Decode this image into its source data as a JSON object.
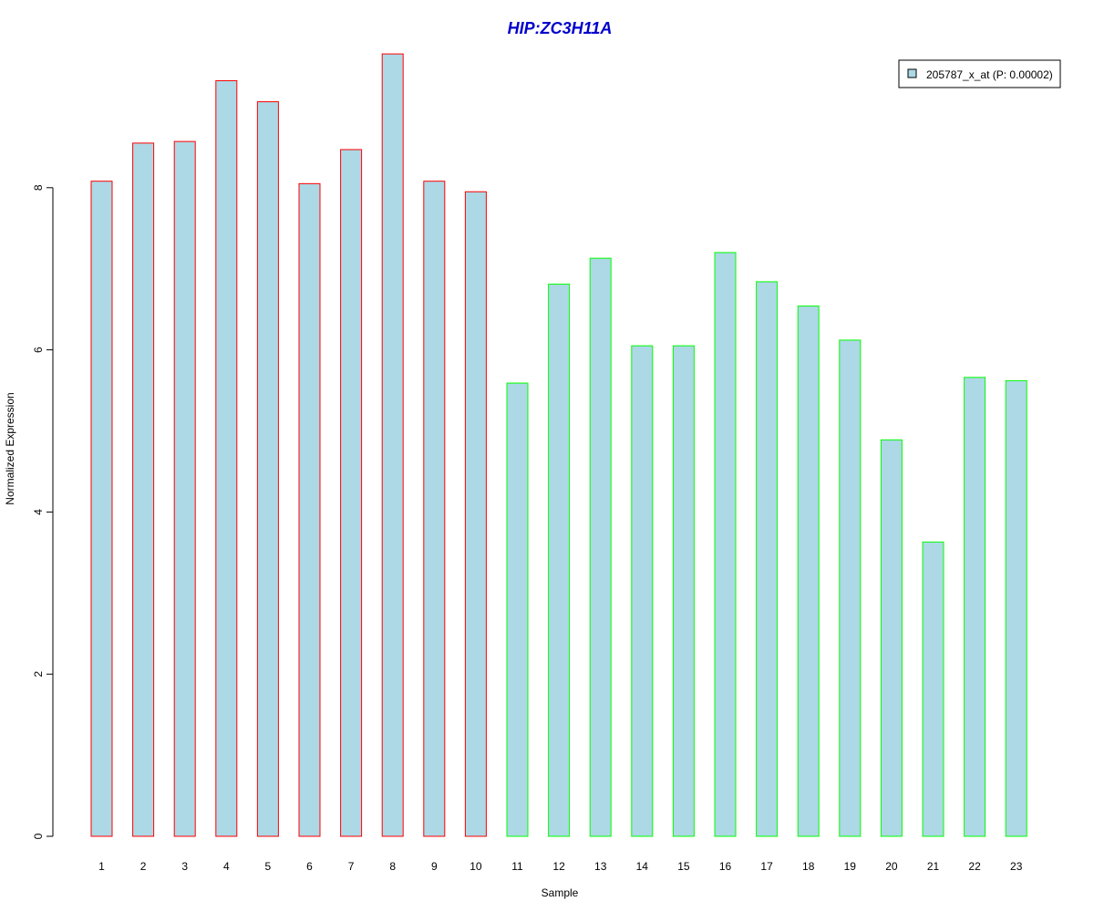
{
  "chart_data": {
    "type": "bar",
    "title": "HIP:ZC3H11A",
    "xlabel": "Sample",
    "ylabel": "Normalized Expression",
    "categories": [
      "1",
      "2",
      "3",
      "4",
      "5",
      "6",
      "7",
      "8",
      "9",
      "10",
      "11",
      "12",
      "13",
      "14",
      "15",
      "16",
      "17",
      "18",
      "19",
      "20",
      "21",
      "22",
      "23"
    ],
    "series": [
      {
        "name": "205787_x_at (P: 0.00002)",
        "values": [
          8.08,
          8.55,
          8.57,
          9.32,
          9.06,
          8.05,
          8.47,
          9.65,
          8.08,
          7.95,
          5.59,
          6.81,
          7.13,
          6.05,
          6.05,
          7.2,
          6.84,
          6.54,
          6.12,
          4.89,
          3.63,
          5.66,
          5.62
        ]
      }
    ],
    "group_border_colors": [
      "#ff0000",
      "#ff0000",
      "#ff0000",
      "#ff0000",
      "#ff0000",
      "#ff0000",
      "#ff0000",
      "#ff0000",
      "#ff0000",
      "#ff0000",
      "#00ff00",
      "#00ff00",
      "#00ff00",
      "#00ff00",
      "#00ff00",
      "#00ff00",
      "#00ff00",
      "#00ff00",
      "#00ff00",
      "#00ff00",
      "#00ff00",
      "#00ff00",
      "#00ff00"
    ],
    "bar_fill_color": "#add8e6",
    "title_color": "#0000cc",
    "yticks": [
      0,
      2,
      4,
      6,
      8
    ],
    "ylim": [
      0,
      9.7
    ],
    "grid": false,
    "legend_position": "top-right"
  }
}
